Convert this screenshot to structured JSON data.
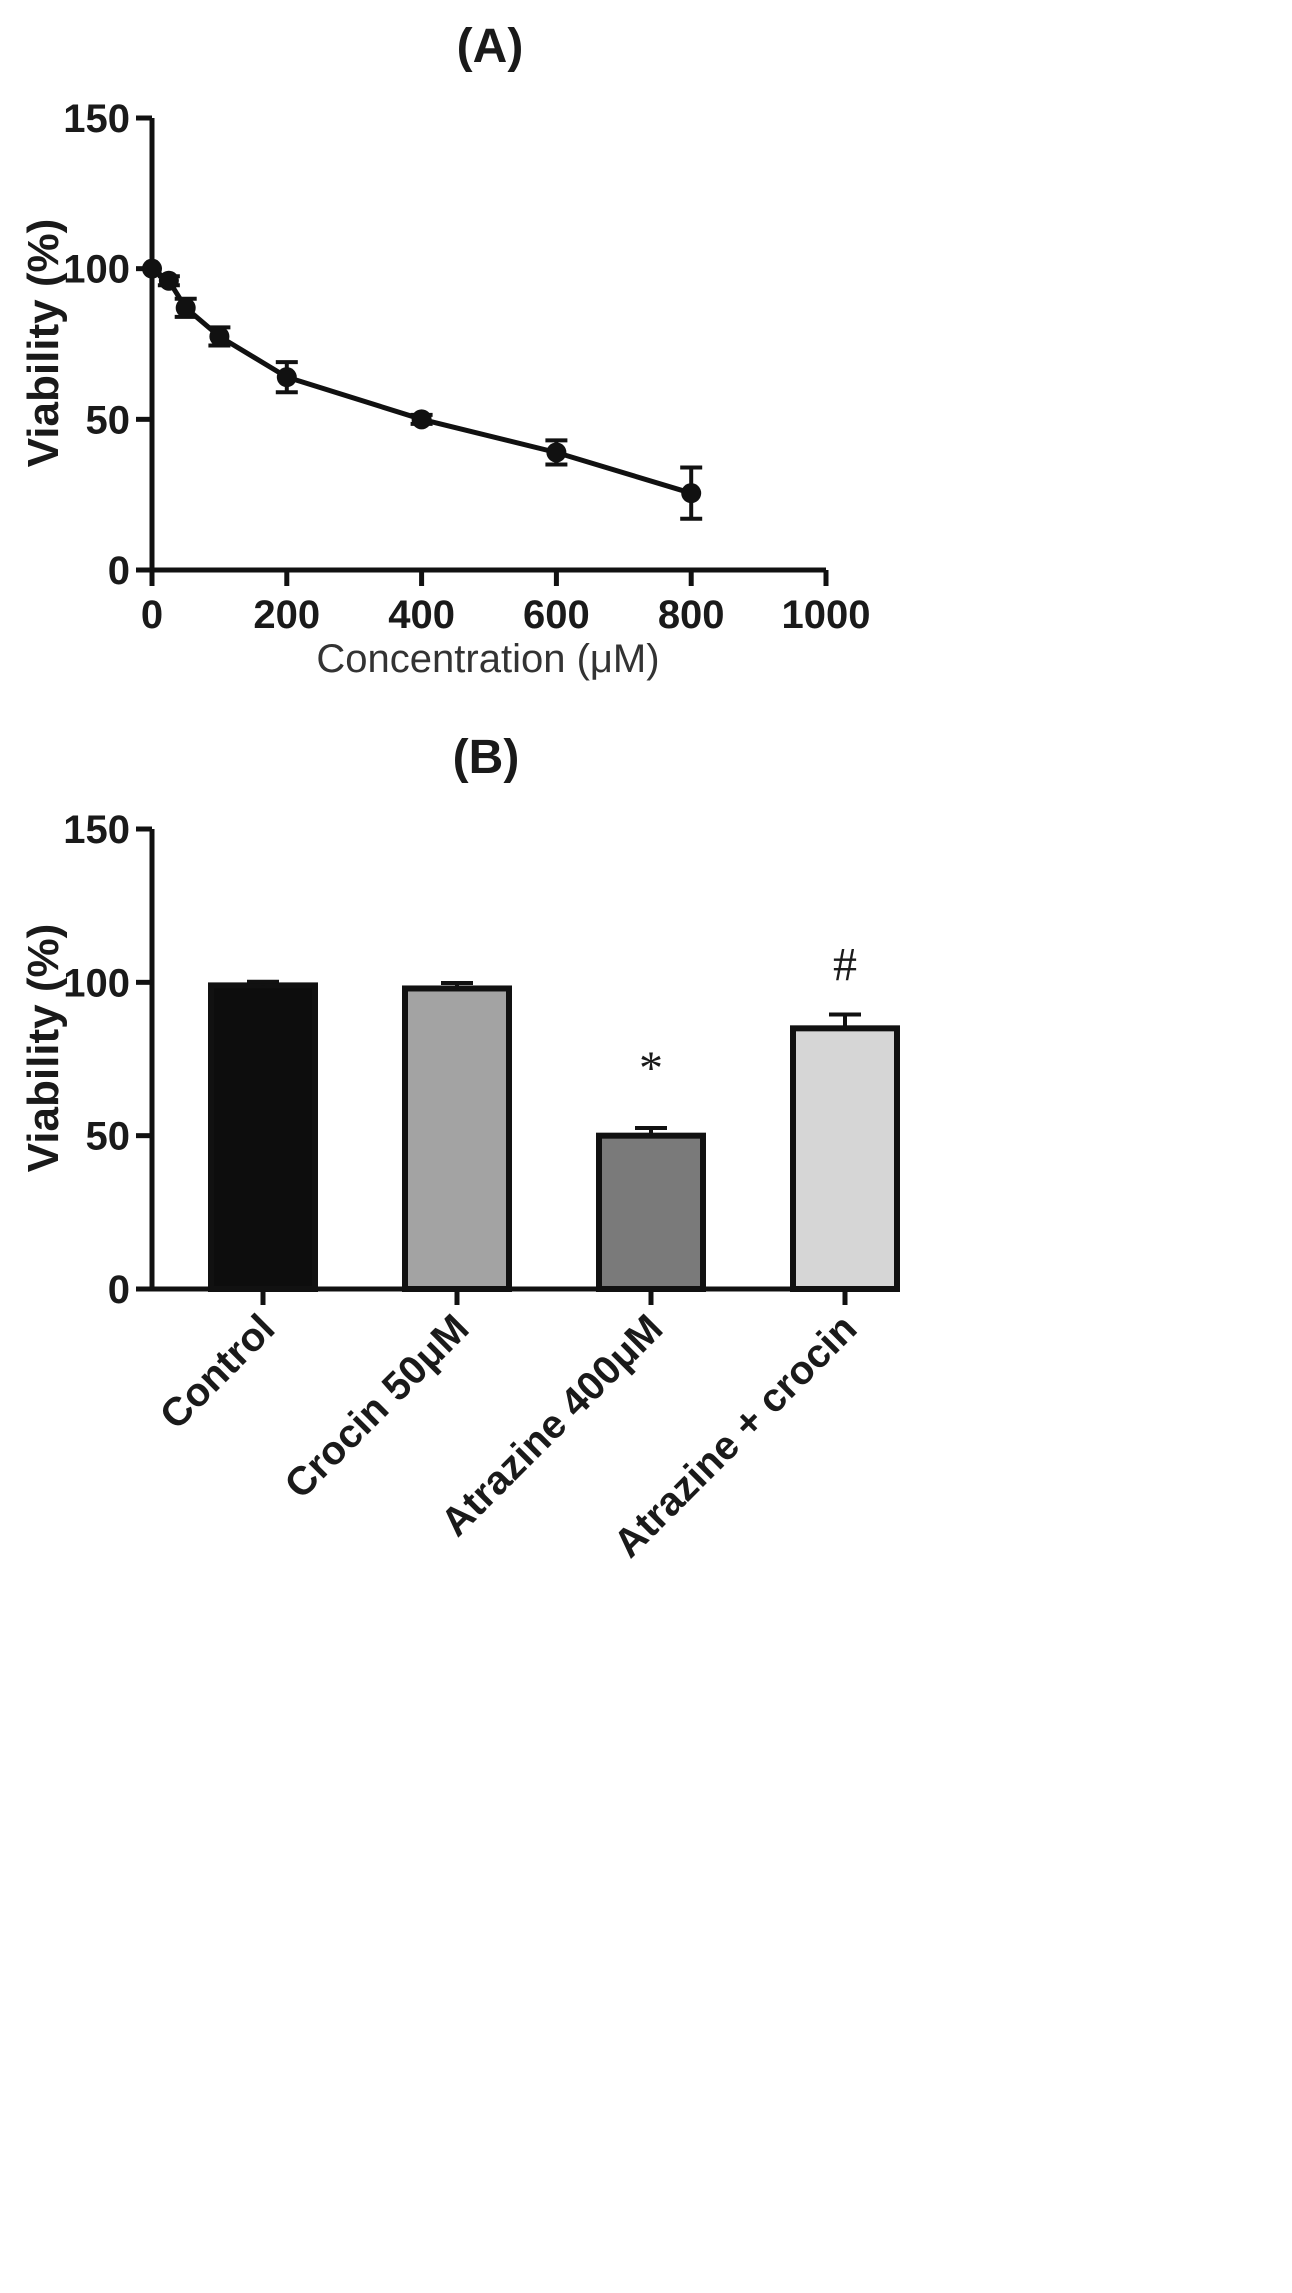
{
  "chart_data": [
    {
      "type": "line",
      "title": "(A)",
      "xlabel": "Concentration (μM)",
      "ylabel": "Viability (%)",
      "xlim": [
        0,
        1000
      ],
      "ylim": [
        0,
        150
      ],
      "x_ticks": [
        "0",
        "200",
        "400",
        "600",
        "800",
        "1000"
      ],
      "y_ticks": [
        "0",
        "50",
        "100",
        "150"
      ],
      "grid": false,
      "series": [
        {
          "x": [
            0,
            25,
            50,
            100,
            200,
            400,
            600,
            800
          ],
          "y": [
            100,
            96,
            87,
            77.5,
            64,
            50,
            39,
            25.5
          ],
          "error": [
            0,
            1.5,
            3,
            3,
            5,
            1.5,
            4,
            8.5
          ],
          "color": "#111111"
        }
      ]
    },
    {
      "type": "bar",
      "title": "(B)",
      "xlabel": "",
      "ylabel": "Viability (%)",
      "ylim": [
        0,
        150
      ],
      "y_ticks": [
        "0",
        "50",
        "100",
        "150"
      ],
      "grid": false,
      "categories": [
        "Control",
        "Crocin 50μM",
        "Atrazine 400μM",
        "Atrazine + crocin"
      ],
      "values": [
        99,
        98,
        50,
        85
      ],
      "error": [
        1.2,
        1.8,
        2.5,
        4.5
      ],
      "bar_colors": [
        "#0d0d0d",
        "#a3a3a3",
        "#7a7a7a",
        "#d6d6d6"
      ],
      "annotations": [
        "",
        "",
        "*",
        "#"
      ]
    }
  ]
}
